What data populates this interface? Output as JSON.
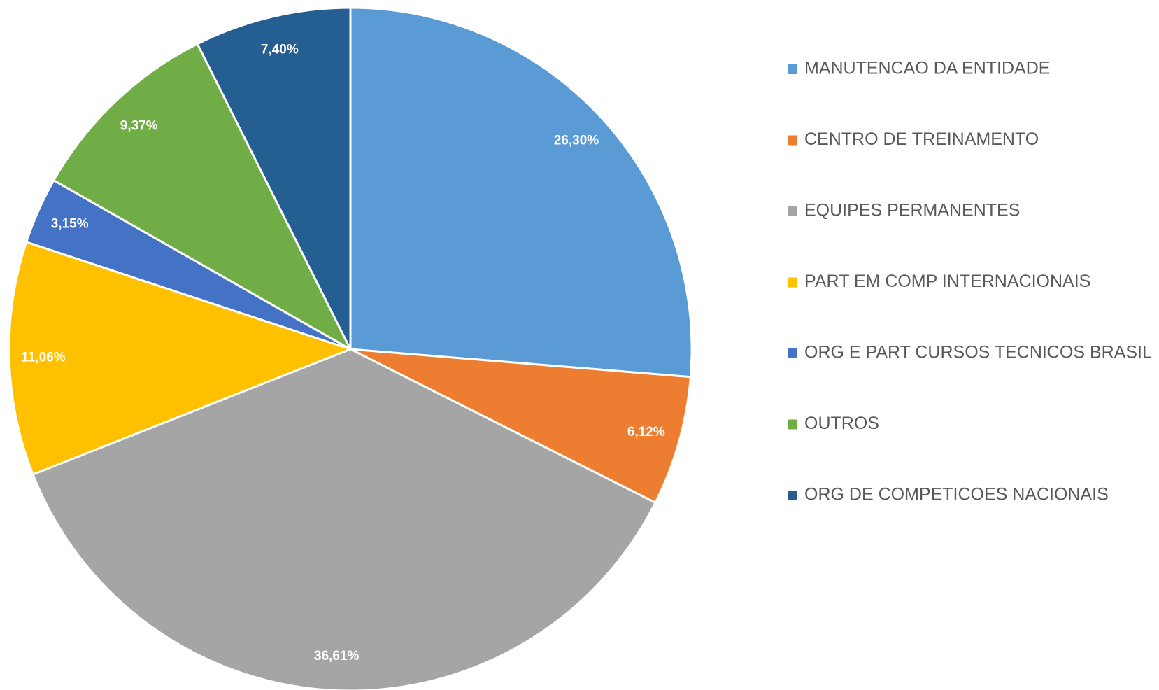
{
  "chart_data": {
    "type": "pie",
    "categories": [
      "MANUTENCAO DA ENTIDADE",
      "CENTRO DE TREINAMENTO",
      "EQUIPES PERMANENTES",
      "PART EM COMP INTERNACIONAIS",
      "ORG E PART CURSOS TECNICOS BRASIL",
      "OUTROS",
      "ORG DE COMPETICOES NACIONAIS"
    ],
    "values": [
      26.3,
      6.12,
      36.61,
      11.06,
      3.15,
      9.37,
      7.4
    ],
    "value_labels": [
      "26,30%",
      "6,12%",
      "36,61%",
      "11,06%",
      "3,15%",
      "9,37%",
      "7,40%"
    ],
    "colors": [
      "#5b9bd5",
      "#ed7d31",
      "#a5a5a5",
      "#ffc000",
      "#4472c4",
      "#70ad47",
      "#255e91"
    ],
    "legend": "right"
  }
}
